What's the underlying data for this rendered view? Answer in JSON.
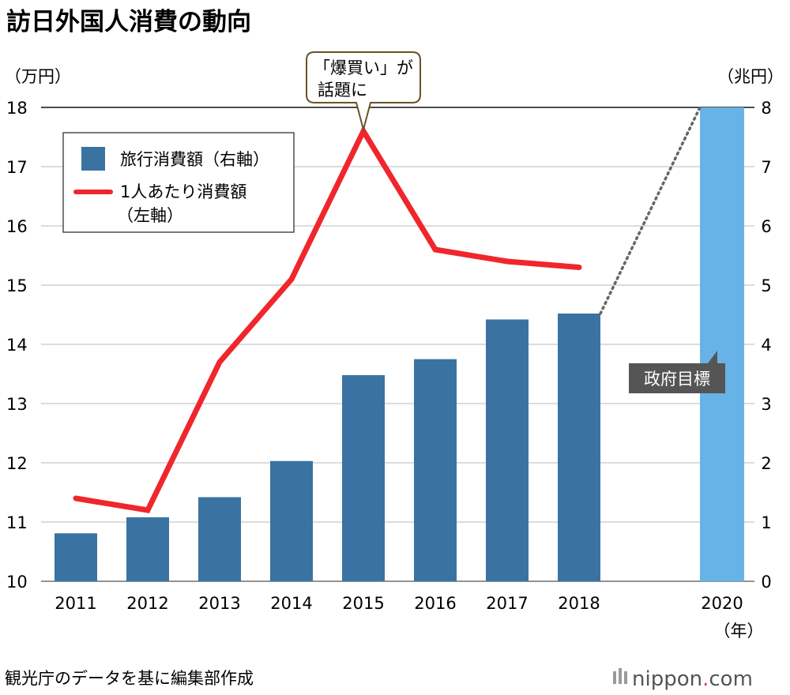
{
  "chart_data": {
    "type": "bar+line",
    "title": "訪日外国人消費の動向",
    "left_axis": {
      "unit_label": "（万円）",
      "range": [
        10,
        18
      ],
      "ticks": [
        10,
        11,
        12,
        13,
        14,
        15,
        16,
        17,
        18
      ]
    },
    "right_axis": {
      "unit_label": "（兆円）",
      "range": [
        0,
        8
      ],
      "ticks": [
        0,
        1,
        2,
        3,
        4,
        5,
        6,
        7,
        8
      ]
    },
    "categories": [
      "2011",
      "2012",
      "2013",
      "2014",
      "2015",
      "2016",
      "2017",
      "2018",
      "2020"
    ],
    "x_unit_label": "（年）",
    "series": [
      {
        "name": "旅行消費額（右軸）",
        "type": "bar",
        "axis": "right",
        "color": "#3a73a2",
        "values": [
          0.81,
          1.08,
          1.42,
          2.03,
          3.48,
          3.75,
          4.42,
          4.52,
          null
        ]
      },
      {
        "name": "1人あたり消費額（左軸）",
        "legend_lines": [
          "1人あたり消費額",
          "（左軸）"
        ],
        "type": "line",
        "axis": "left",
        "color": "#f0262d",
        "values": [
          11.4,
          11.2,
          13.7,
          15.1,
          17.6,
          15.6,
          15.4,
          15.3,
          null
        ]
      },
      {
        "name": "政府目標",
        "type": "bar",
        "axis": "right",
        "color": "#67b3e8",
        "values": [
          null,
          null,
          null,
          null,
          null,
          null,
          null,
          null,
          8
        ]
      }
    ],
    "target_connector": {
      "from": "2018",
      "to": "2020",
      "style": "dotted",
      "color": "#666666"
    },
    "annotations": [
      {
        "text_lines": [
          "「爆買い」が",
          "話題に"
        ],
        "category": "2015",
        "series": "1人あたり消費額（左軸）",
        "style": "callout"
      },
      {
        "text": "政府目標",
        "category": "2020",
        "style": "dark-label"
      }
    ],
    "grid": true,
    "legend_position": "top-left"
  },
  "footer": {
    "source": "観光庁のデータを基に編集部作成",
    "logo_main": "nippon",
    "logo_dot": ".",
    "logo_com": "com"
  }
}
